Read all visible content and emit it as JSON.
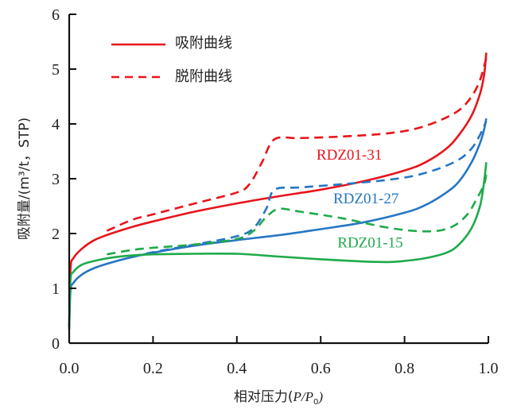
{
  "chart_data": {
    "type": "line",
    "title": "",
    "xlabel": "相对压力(P/P₀)",
    "xlabel_parts": {
      "prefix": "相对压力(",
      "italic1": "P",
      "slash": "/",
      "italic2": "P",
      "sub": "0",
      "suffix": ")"
    },
    "ylabel": "吸附量/(m³/t，STP)",
    "xlim": [
      0,
      1.0
    ],
    "ylim": [
      0,
      6
    ],
    "x_ticks": [
      "0.0",
      "0.2",
      "0.4",
      "0.6",
      "0.8",
      "1.0"
    ],
    "x_tick_values": [
      0,
      0.2,
      0.4,
      0.6,
      0.8,
      1.0
    ],
    "y_ticks": [
      "0",
      "1",
      "2",
      "3",
      "4",
      "5",
      "6"
    ],
    "y_tick_values": [
      0,
      1,
      2,
      3,
      4,
      5,
      6
    ],
    "grid": false,
    "legend": {
      "placement": "top-left",
      "entries": [
        {
          "label": "吸附曲线",
          "style": "solid",
          "color": "#e8141a"
        },
        {
          "label": "脱附曲线",
          "style": "dashed",
          "color": "#e8141a"
        }
      ]
    },
    "series": [
      {
        "name": "RDZ01-31 吸附",
        "sample": "RDZ01-31",
        "kind": "adsorption",
        "style": "solid",
        "color": "#e8141a",
        "x": [
          0.0,
          0.003,
          0.01,
          0.03,
          0.06,
          0.1,
          0.15,
          0.2,
          0.3,
          0.4,
          0.5,
          0.6,
          0.7,
          0.8,
          0.85,
          0.9,
          0.93,
          0.96,
          0.98,
          0.99,
          0.995
        ],
        "y": [
          0.3,
          1.35,
          1.55,
          1.72,
          1.88,
          2.0,
          2.12,
          2.22,
          2.4,
          2.55,
          2.68,
          2.8,
          2.95,
          3.15,
          3.3,
          3.55,
          3.8,
          4.15,
          4.55,
          4.9,
          5.3
        ]
      },
      {
        "name": "RDZ01-31 脱附",
        "sample": "RDZ01-31",
        "kind": "desorption",
        "style": "dashed",
        "color": "#e8141a",
        "x": [
          0.09,
          0.15,
          0.2,
          0.3,
          0.4,
          0.43,
          0.46,
          0.49,
          0.55,
          0.65,
          0.75,
          0.82,
          0.88,
          0.93,
          0.96,
          0.98,
          0.995
        ],
        "y": [
          2.05,
          2.25,
          2.35,
          2.55,
          2.75,
          2.9,
          3.3,
          3.72,
          3.74,
          3.77,
          3.82,
          3.9,
          4.05,
          4.25,
          4.5,
          4.8,
          5.2
        ]
      },
      {
        "name": "RDZ01-27 吸附",
        "sample": "RDZ01-27",
        "kind": "adsorption",
        "style": "solid",
        "color": "#2676c4",
        "x": [
          0.0,
          0.003,
          0.01,
          0.03,
          0.06,
          0.1,
          0.15,
          0.2,
          0.3,
          0.4,
          0.5,
          0.6,
          0.7,
          0.8,
          0.85,
          0.9,
          0.93,
          0.96,
          0.98,
          0.99,
          0.995
        ],
        "y": [
          0.25,
          0.95,
          1.1,
          1.25,
          1.37,
          1.47,
          1.57,
          1.65,
          1.78,
          1.88,
          1.97,
          2.08,
          2.2,
          2.38,
          2.52,
          2.75,
          2.95,
          3.3,
          3.65,
          3.9,
          4.1
        ]
      },
      {
        "name": "RDZ01-27 脱附",
        "sample": "RDZ01-27",
        "kind": "desorption",
        "style": "dashed",
        "color": "#2676c4",
        "x": [
          0.15,
          0.2,
          0.3,
          0.4,
          0.44,
          0.47,
          0.49,
          0.55,
          0.65,
          0.75,
          0.82,
          0.88,
          0.93,
          0.96,
          0.98,
          0.995
        ],
        "y": [
          1.58,
          1.66,
          1.8,
          1.95,
          2.1,
          2.45,
          2.8,
          2.84,
          2.9,
          2.97,
          3.05,
          3.18,
          3.35,
          3.55,
          3.8,
          4.05
        ]
      },
      {
        "name": "RDZ01-15 吸附",
        "sample": "RDZ01-15",
        "kind": "adsorption",
        "style": "solid",
        "color": "#1faa4a",
        "x": [
          0.0,
          0.003,
          0.01,
          0.03,
          0.06,
          0.1,
          0.15,
          0.2,
          0.3,
          0.4,
          0.5,
          0.6,
          0.7,
          0.76,
          0.8,
          0.85,
          0.9,
          0.93,
          0.96,
          0.98,
          0.99,
          0.995
        ],
        "y": [
          0.3,
          1.15,
          1.3,
          1.43,
          1.5,
          1.56,
          1.6,
          1.62,
          1.63,
          1.63,
          1.58,
          1.53,
          1.49,
          1.48,
          1.5,
          1.55,
          1.65,
          1.8,
          2.1,
          2.5,
          2.95,
          3.3
        ]
      },
      {
        "name": "RDZ01-15 脱附",
        "sample": "RDZ01-15",
        "kind": "desorption",
        "style": "dashed",
        "color": "#1faa4a",
        "x": [
          0.09,
          0.15,
          0.2,
          0.3,
          0.4,
          0.44,
          0.47,
          0.5,
          0.55,
          0.65,
          0.75,
          0.82,
          0.88,
          0.92,
          0.95,
          0.97,
          0.99,
          0.995
        ],
        "y": [
          1.62,
          1.7,
          1.74,
          1.8,
          1.9,
          2.05,
          2.3,
          2.45,
          2.4,
          2.28,
          2.12,
          2.05,
          2.05,
          2.15,
          2.35,
          2.6,
          2.9,
          3.1
        ]
      }
    ],
    "annotations": [
      {
        "text": "RDZ01-31",
        "x": 0.59,
        "y": 3.35,
        "color": "#e8141a"
      },
      {
        "text": "RDZ01-27",
        "x": 0.63,
        "y": 2.55,
        "color": "#2676c4"
      },
      {
        "text": "RDZ01-15",
        "x": 0.64,
        "y": 1.75,
        "color": "#1faa4a"
      }
    ]
  }
}
